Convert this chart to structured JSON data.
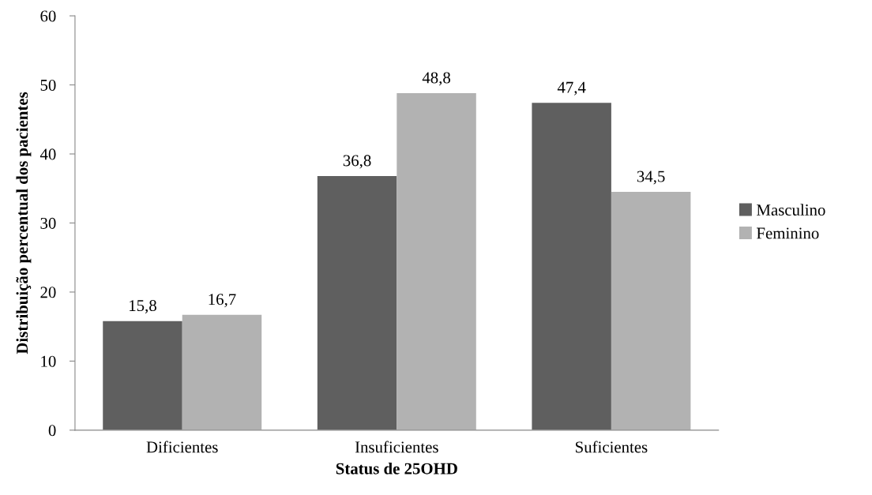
{
  "chart_data": {
    "type": "bar",
    "xlabel": "Status de 25OHD",
    "ylabel": "Distribuição percentual dos pacientes",
    "categories": [
      "Dificientes",
      "Insuficientes",
      "Suficientes"
    ],
    "series": [
      {
        "name": "Masculino",
        "color": "#5f5f5f",
        "values": [
          15.8,
          36.8,
          47.4
        ],
        "value_labels": [
          "15,8",
          "36,8",
          "47,4"
        ]
      },
      {
        "name": "Feminino",
        "color": "#b2b2b2",
        "values": [
          16.7,
          48.8,
          34.5
        ],
        "value_labels": [
          "16,7",
          "48,8",
          "34,5"
        ]
      }
    ],
    "ylim": [
      0,
      60
    ],
    "yticks": [
      0,
      10,
      20,
      30,
      40,
      50,
      60
    ],
    "grid": false,
    "legend": "right"
  }
}
